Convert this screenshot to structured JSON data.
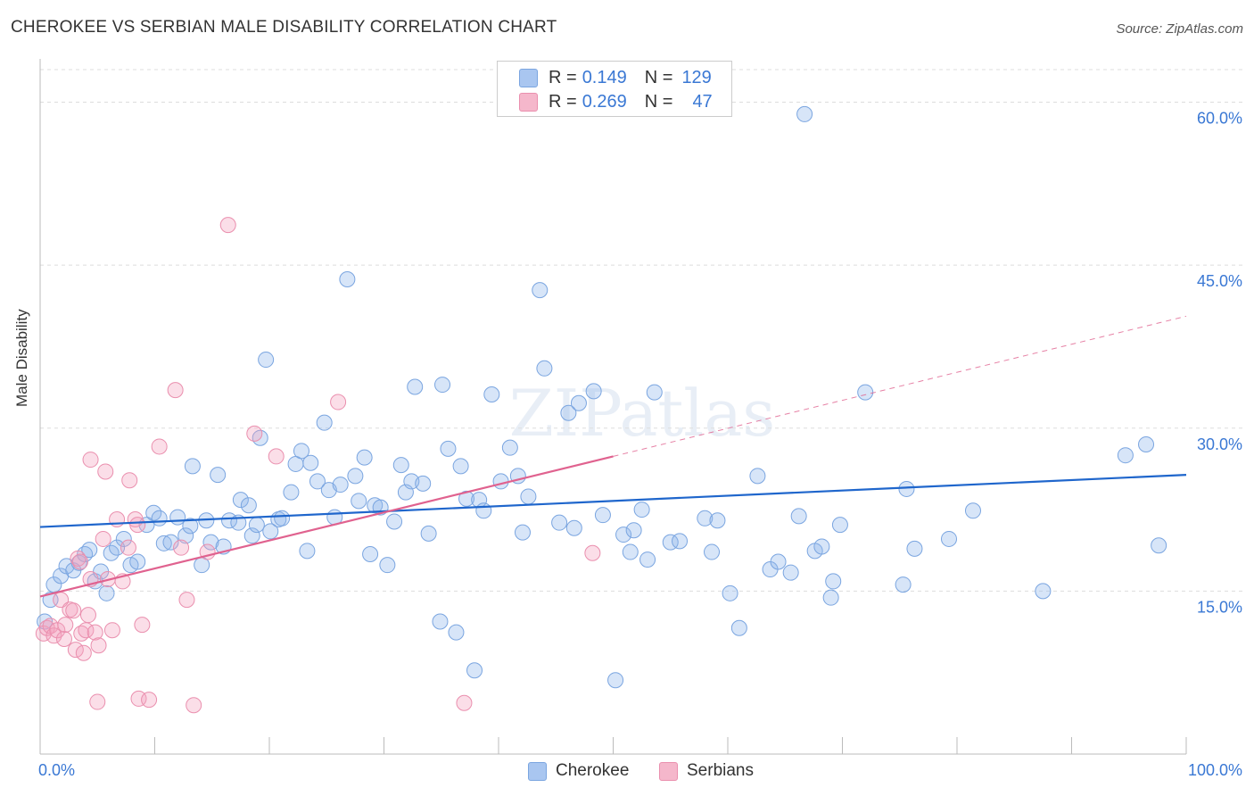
{
  "title": "CHEROKEE VS SERBIAN MALE DISABILITY CORRELATION CHART",
  "source": "Source: ZipAtlas.com",
  "watermark": "ZIPatlas",
  "legend": {
    "rows": [
      {
        "r_label": "R =",
        "r_value": "0.149",
        "n_label": "N =",
        "n_value": "129",
        "color": "#a9c6f0"
      },
      {
        "r_label": "R =",
        "r_value": "0.269",
        "n_label": "N =",
        "n_value": "47",
        "color": "#f5b7cb"
      }
    ]
  },
  "colors": {
    "cherokee_fill": "rgba(140,180,235,0.35)",
    "cherokee_stroke": "#7aa5e0",
    "cherokee_line": "#1f66cc",
    "serbians_fill": "rgba(244,160,188,0.35)",
    "serbians_stroke": "#ea8fae",
    "serbians_line": "#e0628f",
    "tick_text": "#3a78d4",
    "grid": "#dddddd"
  },
  "chart_data": {
    "type": "scatter",
    "title": "CHEROKEE VS SERBIAN MALE DISABILITY CORRELATION CHART",
    "xlabel": "",
    "ylabel": "Male Disability",
    "xlim": [
      0,
      100
    ],
    "ylim": [
      0,
      63
    ],
    "x_tick_labels": [
      "0.0%",
      "100.0%"
    ],
    "y_ticks": [
      15,
      30,
      45,
      60
    ],
    "y_tick_labels": [
      "15.0%",
      "30.0%",
      "45.0%",
      "60.0%"
    ],
    "grid": true,
    "legend_position": "top-center",
    "series": [
      {
        "name": "Cherokee",
        "color": "#a9c6f0",
        "trend": {
          "x": [
            0,
            100
          ],
          "y": [
            20.9,
            25.7
          ],
          "dashed_from": null
        },
        "points": [
          [
            0.4,
            12.2
          ],
          [
            0.9,
            14.2
          ],
          [
            1.2,
            15.6
          ],
          [
            1.8,
            16.4
          ],
          [
            2.3,
            17.3
          ],
          [
            2.9,
            16.9
          ],
          [
            3.4,
            17.6
          ],
          [
            3.9,
            18.4
          ],
          [
            4.3,
            18.8
          ],
          [
            4.8,
            15.9
          ],
          [
            5.3,
            16.8
          ],
          [
            5.8,
            14.8
          ],
          [
            6.2,
            18.5
          ],
          [
            6.7,
            19.0
          ],
          [
            7.3,
            19.8
          ],
          [
            7.9,
            17.4
          ],
          [
            8.5,
            17.7
          ],
          [
            9.3,
            21.1
          ],
          [
            9.9,
            22.2
          ],
          [
            10.4,
            21.7
          ],
          [
            10.8,
            19.4
          ],
          [
            11.4,
            19.5
          ],
          [
            12.0,
            21.8
          ],
          [
            12.7,
            20.1
          ],
          [
            13.1,
            21.0
          ],
          [
            13.3,
            26.5
          ],
          [
            14.1,
            17.4
          ],
          [
            14.5,
            21.5
          ],
          [
            14.9,
            19.5
          ],
          [
            15.5,
            25.7
          ],
          [
            16.0,
            19.1
          ],
          [
            16.5,
            21.5
          ],
          [
            17.3,
            21.3
          ],
          [
            17.5,
            23.4
          ],
          [
            18.2,
            22.9
          ],
          [
            18.5,
            20.1
          ],
          [
            18.9,
            21.1
          ],
          [
            19.2,
            29.1
          ],
          [
            19.7,
            36.3
          ],
          [
            20.1,
            20.5
          ],
          [
            20.8,
            21.6
          ],
          [
            21.1,
            21.7
          ],
          [
            21.9,
            24.1
          ],
          [
            22.3,
            26.7
          ],
          [
            22.8,
            27.9
          ],
          [
            23.3,
            18.7
          ],
          [
            23.6,
            26.8
          ],
          [
            24.2,
            25.1
          ],
          [
            24.8,
            30.5
          ],
          [
            25.2,
            24.3
          ],
          [
            25.7,
            21.8
          ],
          [
            26.2,
            24.8
          ],
          [
            26.8,
            43.7
          ],
          [
            27.5,
            25.6
          ],
          [
            27.8,
            23.3
          ],
          [
            28.3,
            27.3
          ],
          [
            28.8,
            18.4
          ],
          [
            29.2,
            22.9
          ],
          [
            29.7,
            22.7
          ],
          [
            30.3,
            17.4
          ],
          [
            30.9,
            21.4
          ],
          [
            31.5,
            26.6
          ],
          [
            31.9,
            24.1
          ],
          [
            32.4,
            25.1
          ],
          [
            32.7,
            33.8
          ],
          [
            33.4,
            24.9
          ],
          [
            33.9,
            20.3
          ],
          [
            34.9,
            12.2
          ],
          [
            35.1,
            34.0
          ],
          [
            35.6,
            28.1
          ],
          [
            36.3,
            11.2
          ],
          [
            36.7,
            26.5
          ],
          [
            37.2,
            23.5
          ],
          [
            37.9,
            7.7
          ],
          [
            38.3,
            23.4
          ],
          [
            38.7,
            22.4
          ],
          [
            39.4,
            33.1
          ],
          [
            40.2,
            25.1
          ],
          [
            41.0,
            28.2
          ],
          [
            41.7,
            25.6
          ],
          [
            42.1,
            20.4
          ],
          [
            42.6,
            23.7
          ],
          [
            43.6,
            42.7
          ],
          [
            44.0,
            35.5
          ],
          [
            45.3,
            21.3
          ],
          [
            46.1,
            31.4
          ],
          [
            46.6,
            20.8
          ],
          [
            47.0,
            32.3
          ],
          [
            48.3,
            33.4
          ],
          [
            49.1,
            22.0
          ],
          [
            50.2,
            6.8
          ],
          [
            50.9,
            20.2
          ],
          [
            51.5,
            18.6
          ],
          [
            51.8,
            20.6
          ],
          [
            52.5,
            22.5
          ],
          [
            53.0,
            17.9
          ],
          [
            53.6,
            33.3
          ],
          [
            55.0,
            19.5
          ],
          [
            55.8,
            19.6
          ],
          [
            58.0,
            21.7
          ],
          [
            58.6,
            18.6
          ],
          [
            59.1,
            21.5
          ],
          [
            60.2,
            14.8
          ],
          [
            61.0,
            11.6
          ],
          [
            62.6,
            25.6
          ],
          [
            63.7,
            17.0
          ],
          [
            64.4,
            17.7
          ],
          [
            65.5,
            16.7
          ],
          [
            66.2,
            21.9
          ],
          [
            66.7,
            58.9
          ],
          [
            67.6,
            18.7
          ],
          [
            68.2,
            19.1
          ],
          [
            69.0,
            14.4
          ],
          [
            69.2,
            15.9
          ],
          [
            69.8,
            21.1
          ],
          [
            72.0,
            33.3
          ],
          [
            75.3,
            15.6
          ],
          [
            75.6,
            24.4
          ],
          [
            76.3,
            18.9
          ],
          [
            79.3,
            19.8
          ],
          [
            81.4,
            22.4
          ],
          [
            87.5,
            15.0
          ],
          [
            94.7,
            27.5
          ],
          [
            96.5,
            28.5
          ],
          [
            97.6,
            19.2
          ]
        ]
      },
      {
        "name": "Serbians",
        "color": "#f5b7cb",
        "trend": {
          "x": [
            0,
            100
          ],
          "y": [
            14.5,
            40.3
          ],
          "dashed_from": 50
        },
        "points": [
          [
            0.3,
            11.1
          ],
          [
            0.6,
            11.6
          ],
          [
            0.9,
            11.8
          ],
          [
            1.2,
            10.9
          ],
          [
            1.5,
            11.4
          ],
          [
            1.8,
            14.2
          ],
          [
            2.1,
            10.6
          ],
          [
            2.2,
            11.9
          ],
          [
            2.6,
            13.3
          ],
          [
            2.9,
            13.2
          ],
          [
            3.1,
            9.6
          ],
          [
            3.3,
            18.0
          ],
          [
            3.5,
            17.7
          ],
          [
            3.6,
            11.1
          ],
          [
            3.8,
            9.3
          ],
          [
            4.0,
            11.4
          ],
          [
            4.2,
            12.8
          ],
          [
            4.4,
            16.1
          ],
          [
            4.4,
            27.1
          ],
          [
            4.8,
            11.2
          ],
          [
            5.0,
            4.8
          ],
          [
            5.1,
            10.0
          ],
          [
            5.5,
            19.8
          ],
          [
            5.7,
            26.0
          ],
          [
            5.9,
            16.1
          ],
          [
            6.3,
            11.4
          ],
          [
            6.7,
            21.6
          ],
          [
            7.2,
            15.9
          ],
          [
            7.7,
            19.0
          ],
          [
            7.8,
            25.2
          ],
          [
            8.3,
            21.6
          ],
          [
            8.5,
            21.1
          ],
          [
            8.6,
            5.1
          ],
          [
            8.9,
            11.9
          ],
          [
            9.5,
            5.0
          ],
          [
            10.4,
            28.3
          ],
          [
            11.8,
            33.5
          ],
          [
            12.3,
            19.0
          ],
          [
            12.8,
            14.2
          ],
          [
            13.4,
            4.5
          ],
          [
            14.6,
            18.6
          ],
          [
            16.4,
            48.7
          ],
          [
            18.7,
            29.5
          ],
          [
            20.6,
            27.4
          ],
          [
            26.0,
            32.4
          ],
          [
            37.0,
            4.7
          ],
          [
            48.2,
            18.5
          ]
        ]
      }
    ]
  },
  "bottom_legend": [
    {
      "label": "Cherokee",
      "color": "#a9c6f0"
    },
    {
      "label": "Serbians",
      "color": "#f5b7cb"
    }
  ]
}
